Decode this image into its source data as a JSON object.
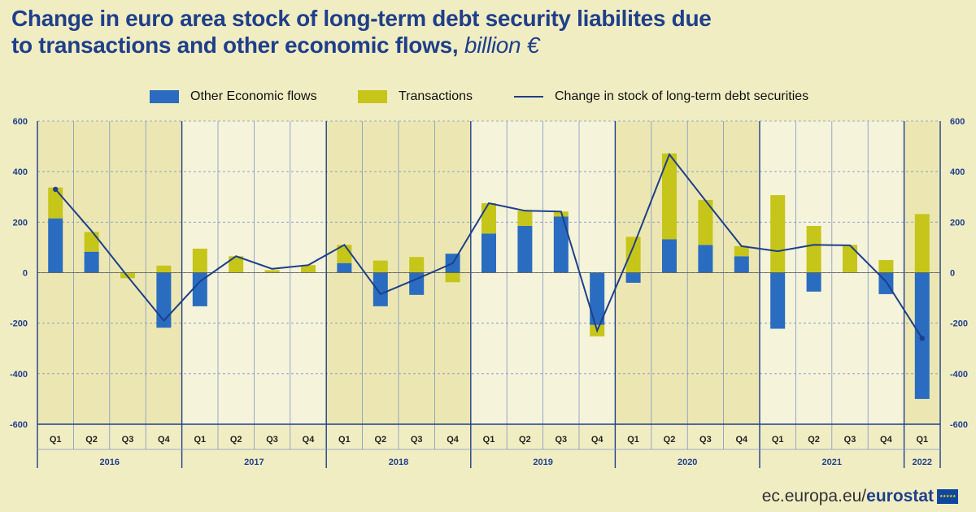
{
  "title": {
    "line1": "Change in euro area stock of long-term debt security liabilites due",
    "line2": "to transactions and other economic flows,",
    "unit": "billion €"
  },
  "legend": [
    {
      "label": "Other Economic flows",
      "type": "bar",
      "color": "#2a6cc0"
    },
    {
      "label": "Transactions",
      "type": "bar",
      "color": "#c6c51a"
    },
    {
      "label": "Change in stock of long-term debt securities",
      "type": "line",
      "color": "#1f3f8a"
    }
  ],
  "footer": {
    "url": "ec.europa.eu/",
    "brand": "eurostat",
    "logo": "eu-flag-icon"
  },
  "chart_data": {
    "type": "bar",
    "stacked": true,
    "categories": [
      "Q1",
      "Q2",
      "Q3",
      "Q4",
      "Q1",
      "Q2",
      "Q3",
      "Q4",
      "Q1",
      "Q2",
      "Q3",
      "Q4",
      "Q1",
      "Q2",
      "Q3",
      "Q4",
      "Q1",
      "Q2",
      "Q3",
      "Q4",
      "Q1",
      "Q2",
      "Q3",
      "Q4",
      "Q1"
    ],
    "groups": [
      {
        "label": "2016",
        "count": 4
      },
      {
        "label": "2017",
        "count": 4
      },
      {
        "label": "2018",
        "count": 4
      },
      {
        "label": "2019",
        "count": 4
      },
      {
        "label": "2020",
        "count": 4
      },
      {
        "label": "2021",
        "count": 4
      },
      {
        "label": "2022",
        "count": 1
      }
    ],
    "series": [
      {
        "name": "Other Economic flows",
        "type": "bar",
        "color": "#2a6cc0",
        "values": [
          215,
          83,
          0,
          -218,
          -133,
          0,
          0,
          0,
          38,
          -133,
          -88,
          75,
          155,
          185,
          222,
          -207,
          -40,
          132,
          110,
          65,
          -222,
          -75,
          0,
          -85,
          -500
        ]
      },
      {
        "name": "Transactions",
        "type": "bar",
        "color": "#c6c51a",
        "values": [
          122,
          78,
          -22,
          28,
          95,
          65,
          10,
          30,
          72,
          48,
          62,
          -38,
          120,
          60,
          20,
          -45,
          142,
          340,
          178,
          40,
          307,
          185,
          110,
          50,
          232
        ]
      },
      {
        "name": "Change in stock of long-term debt securities",
        "type": "line",
        "color": "#1f3f8a",
        "values": [
          330,
          165,
          -15,
          -190,
          -35,
          65,
          15,
          30,
          110,
          -85,
          -25,
          37,
          275,
          245,
          242,
          -230,
          102,
          468,
          285,
          105,
          85,
          110,
          108,
          -35,
          -260
        ]
      }
    ],
    "yticks": [
      600,
      400,
      200,
      0,
      -200,
      -400,
      -600
    ],
    "ylim": [
      -600,
      600
    ],
    "grid": true,
    "legend_position": "top"
  }
}
